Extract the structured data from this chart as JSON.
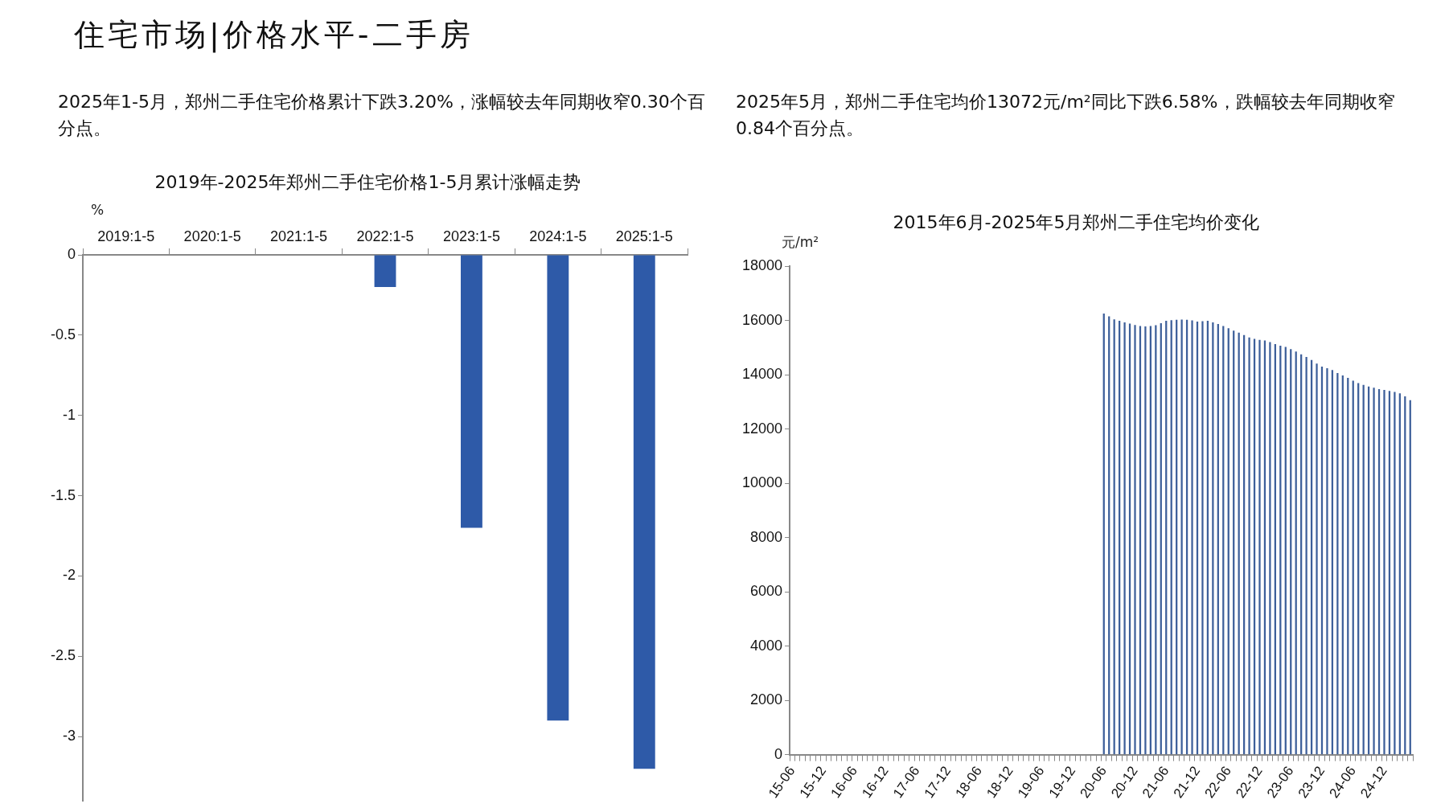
{
  "chart_data": [
    {
      "type": "bar",
      "title": "2019年-2025年郑州二手住宅价格1-5月累计涨幅走势",
      "ylabel": "%",
      "annotations": [
        "住宅市场|价格水平-二手房",
        "2025年1-5月，郑州二手住宅价格累计下跌3.20%，涨幅较去年同期收窄0.30个百分点。"
      ],
      "categories": [
        "2019:1-5",
        "2020:1-5",
        "2021:1-5",
        "2022:1-5",
        "2023:1-5",
        "2024:1-5",
        "2025:1-5"
      ],
      "values": [
        null,
        null,
        null,
        -0.2,
        -1.7,
        -2.9,
        -3.2
      ],
      "color": "#2e5aa8",
      "ylim": [
        -3.4,
        0
      ],
      "yticks": [
        0,
        -0.5,
        -1,
        -1.5,
        -2,
        -2.5,
        -3
      ],
      "grid": false,
      "legend": false
    },
    {
      "type": "bar",
      "title": "2015年6月-2025年5月郑州二手住宅均价变化",
      "ylabel": "元/m²",
      "annotations": [
        "2025年5月，郑州二手住宅均价13072元/m²同比下跌6.58%，跌幅较去年同期收窄0.84个百分点。"
      ],
      "categories": [
        "15-06",
        null,
        null,
        null,
        null,
        null,
        "15-12",
        null,
        null,
        null,
        null,
        null,
        "16-06",
        null,
        null,
        null,
        null,
        null,
        "16-12",
        null,
        null,
        null,
        null,
        null,
        "17-06",
        null,
        null,
        null,
        null,
        null,
        "17-12",
        null,
        null,
        null,
        null,
        null,
        "18-06",
        null,
        null,
        null,
        null,
        null,
        "18-12",
        null,
        null,
        null,
        null,
        null,
        "19-06",
        null,
        null,
        null,
        null,
        null,
        "19-12",
        null,
        null,
        null,
        null,
        null,
        "20-06",
        null,
        null,
        null,
        null,
        null,
        "20-12",
        null,
        null,
        null,
        null,
        null,
        "21-06",
        null,
        null,
        null,
        null,
        null,
        "21-12",
        null,
        null,
        null,
        null,
        null,
        "22-06",
        null,
        null,
        null,
        null,
        null,
        "22-12",
        null,
        null,
        null,
        null,
        null,
        "23-06",
        null,
        null,
        null,
        null,
        null,
        "23-12",
        null,
        null,
        null,
        null,
        null,
        "24-06",
        null,
        null,
        null,
        null,
        null,
        "24-12",
        null,
        null,
        null,
        null,
        null
      ],
      "values": [
        null,
        null,
        null,
        null,
        null,
        null,
        null,
        null,
        null,
        null,
        null,
        null,
        null,
        null,
        null,
        null,
        null,
        null,
        null,
        null,
        null,
        null,
        null,
        null,
        null,
        null,
        null,
        null,
        null,
        null,
        null,
        null,
        null,
        null,
        null,
        null,
        null,
        null,
        null,
        null,
        null,
        null,
        null,
        null,
        null,
        null,
        null,
        null,
        null,
        null,
        null,
        null,
        null,
        null,
        null,
        null,
        null,
        null,
        null,
        null,
        16260,
        16160,
        16050,
        16000,
        15940,
        15890,
        15840,
        15800,
        15790,
        15800,
        15830,
        15910,
        16000,
        16020,
        16030,
        16040,
        16030,
        16010,
        15970,
        15980,
        16000,
        15940,
        15880,
        15800,
        15720,
        15630,
        15560,
        15470,
        15380,
        15330,
        15290,
        15270,
        15210,
        15140,
        15080,
        15030,
        14950,
        14860,
        14760,
        14660,
        14550,
        14420,
        14310,
        14250,
        14180,
        14070,
        13980,
        13890,
        13790,
        13700,
        13630,
        13570,
        13530,
        13480,
        13450,
        13410,
        13370,
        13320,
        13210,
        13072
      ],
      "color": "#3d5f9a",
      "ylim": [
        0,
        18000
      ],
      "yticks": [
        0,
        2000,
        4000,
        6000,
        8000,
        10000,
        12000,
        14000,
        16000,
        18000
      ],
      "grid": false,
      "legend": false
    }
  ]
}
